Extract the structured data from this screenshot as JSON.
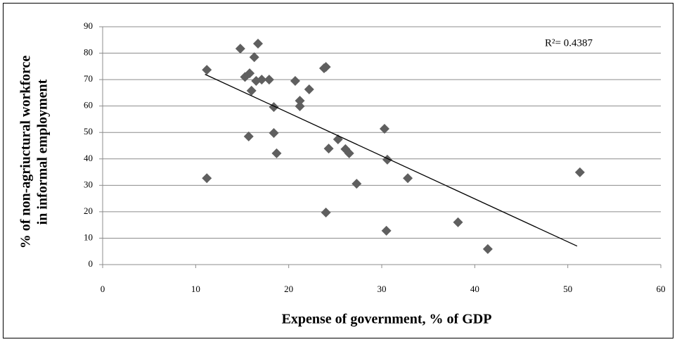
{
  "chart_data": {
    "type": "scatter",
    "x_label": "Expense of government, % of GDP",
    "y_label": [
      "% of non-agriuctural workforce",
      "in informal employment"
    ],
    "annotation": "R²= 0.4387",
    "color": "#5f5f5f",
    "x": [
      11.2,
      11.2,
      14.8,
      15.3,
      15.8,
      15.7,
      16.0,
      16.3,
      16.7,
      16.5,
      17.1,
      17.9,
      18.4,
      18.4,
      18.7,
      20.7,
      21.2,
      21.2,
      22.2,
      23.8,
      24.0,
      24.0,
      24.3,
      25.3,
      26.1,
      26.5,
      27.3,
      30.3,
      30.6,
      30.5,
      32.8,
      38.2,
      41.4,
      51.3
    ],
    "values": [
      73.7,
      32.7,
      81.7,
      71,
      72.4,
      48.5,
      65.8,
      78.5,
      83.6,
      69.5,
      70,
      70,
      59.6,
      49.8,
      42.1,
      69.5,
      62,
      59.9,
      66.3,
      74.3,
      74.8,
      19.7,
      43.9,
      47.4,
      43.7,
      42.1,
      30.6,
      51.4,
      39.7,
      12.8,
      32.7,
      16,
      5.9,
      34.9
    ],
    "trendline": {
      "x": [
        11,
        51
      ],
      "values": [
        72,
        7
      ],
      "color": "#000000"
    },
    "xlim": [
      0,
      60
    ],
    "xticks": [
      0,
      10,
      20,
      30,
      40,
      50,
      60
    ],
    "ylim": [
      0,
      90
    ],
    "yticks": [
      0,
      10,
      20,
      30,
      40,
      50,
      60,
      70,
      80,
      90
    ],
    "grid": true
  }
}
